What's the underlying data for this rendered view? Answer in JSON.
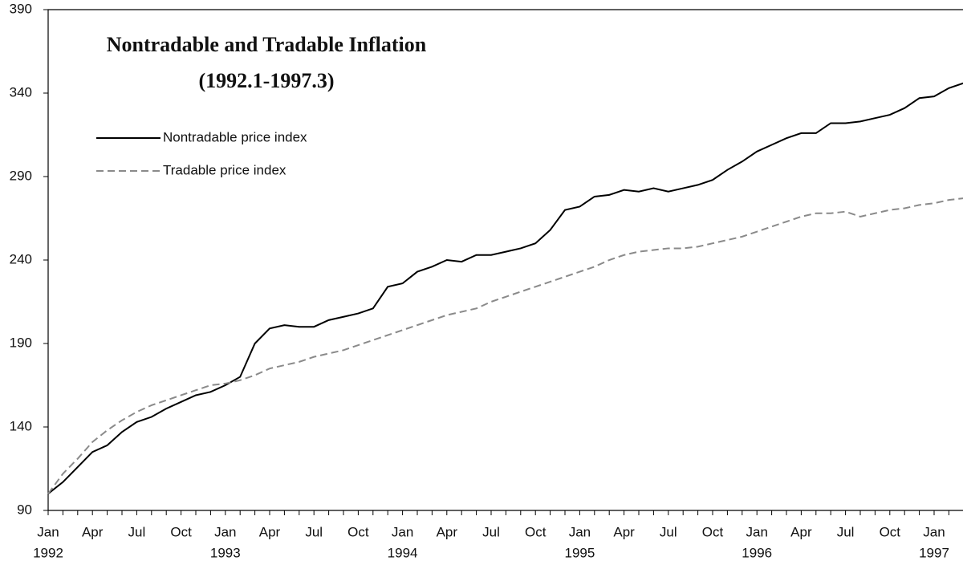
{
  "chart_data": {
    "type": "line",
    "title": "Nontradable and Tradable Inflation",
    "subtitle": "(1992.1-1997.3)",
    "categories": [
      "Jan",
      null,
      null,
      "Apr",
      null,
      null,
      "Jul",
      null,
      null,
      "Oct",
      null,
      null,
      "Jan",
      null,
      null,
      "Apr",
      null,
      null,
      "Jul",
      null,
      null,
      "Oct",
      null,
      null,
      "Jan",
      null,
      null,
      "Apr",
      null,
      null,
      "Jul",
      null,
      null,
      "Oct",
      null,
      null,
      "Jan",
      null,
      null,
      "Apr",
      null,
      null,
      "Jul",
      null,
      null,
      "Oct",
      null,
      null,
      "Jan",
      null,
      null,
      "Apr",
      null,
      null,
      "Jul",
      null,
      null,
      "Oct",
      null,
      null,
      "Jan",
      null,
      null
    ],
    "years": [
      "1992",
      "1993",
      "1994",
      "1995",
      "1996",
      "1997"
    ],
    "series": [
      {
        "name": "Nontradable price index",
        "color": "#000000",
        "dash": false,
        "values": [
          100,
          107,
          116,
          125,
          129,
          137,
          143,
          146,
          151,
          155,
          159,
          161,
          165,
          170,
          190,
          199,
          201,
          200,
          200,
          204,
          206,
          208,
          211,
          224,
          226,
          233,
          236,
          240,
          239,
          243,
          243,
          245,
          247,
          250,
          258,
          270,
          272,
          278,
          279,
          282,
          281,
          283,
          281,
          283,
          285,
          288,
          294,
          299,
          305,
          309,
          313,
          316,
          316,
          322,
          322,
          323,
          325,
          327,
          331,
          337,
          338,
          343,
          346
        ]
      },
      {
        "name": "Tradable price index",
        "color": "#8a8a8a",
        "dash": true,
        "values": [
          100,
          112,
          121,
          131,
          138,
          144,
          149,
          153,
          156,
          159,
          162,
          165,
          166,
          168,
          171,
          175,
          177,
          179,
          182,
          184,
          186,
          189,
          192,
          195,
          198,
          201,
          204,
          207,
          209,
          211,
          215,
          218,
          221,
          224,
          227,
          230,
          233,
          236,
          240,
          243,
          245,
          246,
          247,
          247,
          248,
          250,
          252,
          254,
          257,
          260,
          263,
          266,
          268,
          268,
          269,
          266,
          268,
          270,
          271,
          273,
          274,
          276,
          277
        ]
      }
    ],
    "ylim": [
      90,
      390
    ],
    "yticks": [
      90,
      140,
      190,
      240,
      290,
      340,
      390
    ],
    "grid": false
  }
}
